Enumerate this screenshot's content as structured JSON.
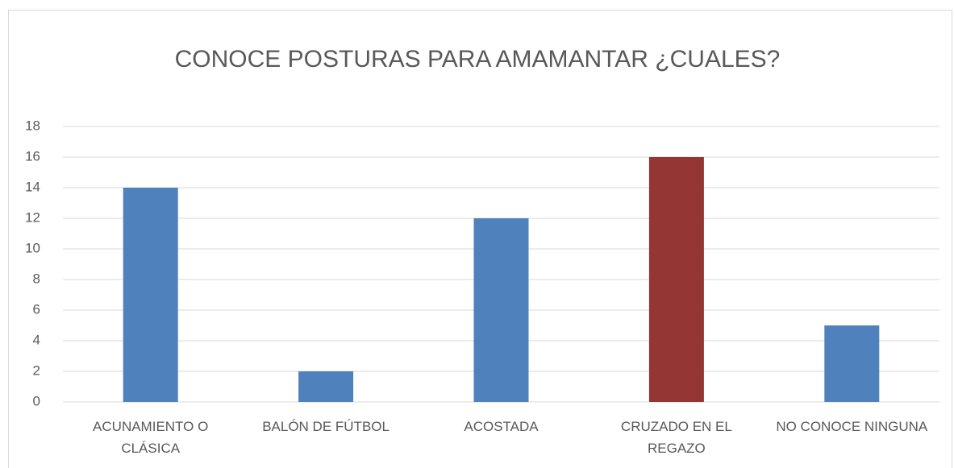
{
  "chart_data": {
    "type": "bar",
    "title": "CONOCE POSTURAS PARA AMAMANTAR ¿CUALES?",
    "categories": [
      "ACUNAMIENTO O CLÁSICA",
      "BALÓN DE FÚTBOL",
      "ACOSTADA",
      "CRUZADO EN EL REGAZO",
      "NO CONOCE NINGUNA"
    ],
    "values": [
      14,
      2,
      12,
      16,
      5
    ],
    "colors": [
      "#4f81bd",
      "#4f81bd",
      "#4f81bd",
      "#943634",
      "#4f81bd"
    ],
    "ylim": [
      0,
      18
    ],
    "yticks": [
      0,
      2,
      4,
      6,
      8,
      10,
      12,
      14,
      16,
      18
    ],
    "grid": true
  }
}
